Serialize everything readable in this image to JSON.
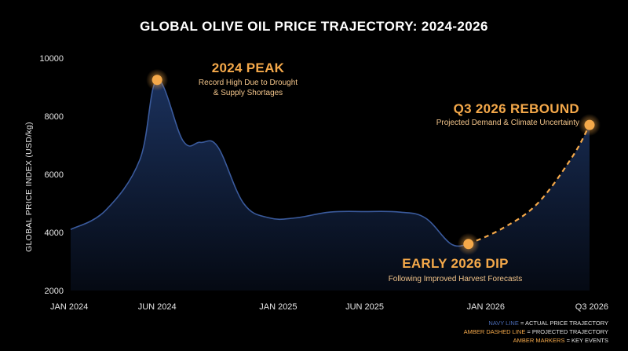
{
  "colors": {
    "background": "#000000",
    "navy_line": "#3a5a9c",
    "amber": "#f5a94a",
    "area_top": "#1c3360",
    "area_bottom": "#050a14"
  },
  "chart_data": {
    "type": "area",
    "title": "GLOBAL OLIVE OIL PRICE TRAJECTORY: 2024-2026",
    "xlabel": "",
    "ylabel": "GLOBAL PRICE INDEX (USD/kg)",
    "ylim": [
      2000,
      10000
    ],
    "yticks": [
      "2000",
      "4000",
      "6000",
      "8000",
      "10000"
    ],
    "xticks": [
      {
        "label": "JAN 2024",
        "x": 0
      },
      {
        "label": "JUN 2024",
        "x": 5
      },
      {
        "label": "JAN 2025",
        "x": 12
      },
      {
        "label": "JUN 2025",
        "x": 17
      },
      {
        "label": "JAN 2026",
        "x": 24
      },
      {
        "label": "Q3 2026",
        "x": 30
      }
    ],
    "grid": false,
    "series": [
      {
        "style": "navy-solid",
        "x": [
          0,
          2,
          4,
          5,
          6.5,
          7.5,
          8.5,
          10,
          11.5,
          13,
          15,
          17,
          19,
          20.5,
          22,
          23
        ],
        "y": [
          4100,
          4750,
          6500,
          9250,
          7150,
          7100,
          6950,
          5000,
          4500,
          4500,
          4700,
          4720,
          4700,
          4500,
          3600,
          3600
        ]
      },
      {
        "style": "amber-dashed",
        "x": [
          23,
          25,
          27,
          29,
          30
        ],
        "y": [
          3600,
          4150,
          5000,
          6600,
          7700
        ]
      }
    ],
    "annotations": [
      {
        "title": "2024 PEAK",
        "subtitle_lines": [
          "Record High Due to Drought",
          "& Supply Shortages"
        ],
        "x": 5,
        "y": 9250
      },
      {
        "title": "Q3 2026 REBOUND",
        "subtitle_lines": [
          "Projected Demand & Climate Uncertainty"
        ],
        "x": 30,
        "y": 7700
      },
      {
        "title": "EARLY 2026 DIP",
        "subtitle_lines": [
          "Following Improved Harvest Forecasts"
        ],
        "x": 23,
        "y": 3600
      }
    ],
    "legend_position": "bottom-right",
    "legend": [
      {
        "key": "NAVY LINE",
        "text": " = ACTUAL PRICE TRAJECTORY"
      },
      {
        "key": "AMBER DASHED LINE",
        "text": " = PROJECTED TRAJECTORY"
      },
      {
        "key": "AMBER MARKERS",
        "text": " = KEY EVENTS"
      }
    ]
  }
}
